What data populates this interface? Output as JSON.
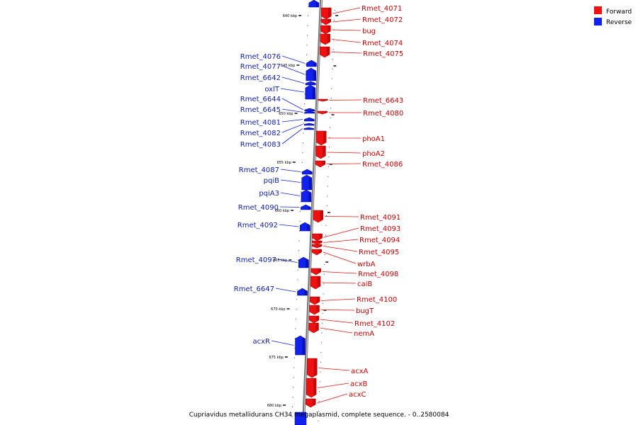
{
  "caption": "Cupriavidus metallidurans CH34 megaplasmid, complete sequence. - 0..2580084",
  "legend": [
    {
      "label": "Forward",
      "color": "#ee1111"
    },
    {
      "label": "Reverse",
      "color": "#1122ee"
    }
  ],
  "kbp_labels": [
    "640 kbp",
    "645 kbp",
    "650 kbp",
    "655 kbp",
    "660 kbp",
    "665 kbp",
    "670 kbp",
    "675 kbp",
    "680 kbp"
  ],
  "forward_genes": [
    "Rmet_4071",
    "Rmet_4072",
    "bug",
    "Rmet_4074",
    "Rmet_4075",
    "Rmet_6643",
    "Rmet_4080",
    "phoA1",
    "phoA2",
    "Rmet_4086",
    "Rmet_4091",
    "Rmet_4093",
    "Rmet_4094",
    "Rmet_4095",
    "wrbA",
    "Rmet_4098",
    "caiB",
    "Rmet_4100",
    "bugT",
    "Rmet_4102",
    "nemA",
    "acxA",
    "acxB",
    "acxC"
  ],
  "reverse_genes": [
    "Rmet_4076",
    "Rmet_4077",
    "Rmet_6642",
    "oxlT",
    "Rmet_6644",
    "Rmet_6645",
    "Rmet_4081",
    "Rmet_4082",
    "Rmet_4083",
    "Rmet_4087",
    "pqiB",
    "pqiA3",
    "Rmet_4090",
    "Rmet_4092",
    "Rmet_4097",
    "Rmet_6647",
    "acxR"
  ]
}
